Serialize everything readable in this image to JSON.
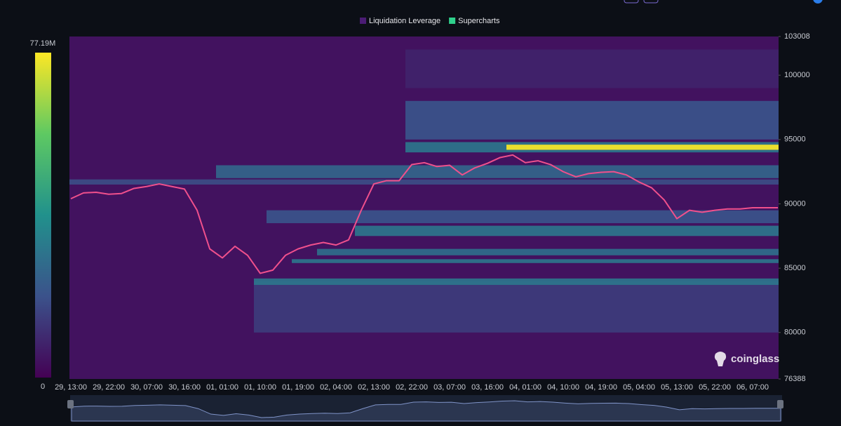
{
  "chart_data": {
    "type": "heatmap",
    "watermark": "coinglass",
    "categories": [
      "29, 13:00",
      null,
      null,
      "29, 22:00",
      null,
      null,
      "30, 07:00",
      null,
      null,
      "30, 16:00",
      null,
      null,
      "01, 01:00",
      null,
      null,
      "01, 10:00",
      null,
      null,
      "01, 19:00",
      null,
      null,
      "02, 04:00",
      null,
      null,
      "02, 13:00",
      null,
      null,
      "02, 22:00",
      null,
      null,
      "03, 07:00",
      null,
      null,
      "03, 16:00",
      null,
      null,
      "04, 01:00",
      null,
      null,
      "04, 10:00",
      null,
      null,
      "04, 19:00",
      null,
      null,
      "05, 04:00",
      null,
      null,
      "05, 13:00",
      null,
      null,
      "05, 22:00",
      null,
      null,
      "06, 07:00",
      null,
      null
    ],
    "ylim": [
      76388,
      103008
    ],
    "yticks": [
      76388,
      80000,
      85000,
      90000,
      95000,
      100000,
      103008
    ],
    "clim": [
      0,
      {
        "value": 77.19,
        "label": "77.19M"
      }
    ],
    "colormap": [
      "#440154",
      "#3b528b",
      "#21918c",
      "#5ec962",
      "#fde725"
    ],
    "series": [
      {
        "name": "Liquidation Leverage",
        "color": "#4b1c74",
        "base": 4,
        "bands": [
          {
            "low": 99000,
            "high": 102000,
            "start": 27,
            "value": 8
          },
          {
            "low": 80000,
            "high": 84000,
            "start": 15,
            "value": 14
          },
          {
            "low": 95000,
            "high": 98000,
            "start": 27,
            "value": 20
          },
          {
            "low": 94000,
            "high": 94800,
            "start": 27,
            "value": 30
          },
          {
            "low": 94200,
            "high": 94600,
            "start": 35,
            "value": 77
          },
          {
            "low": 92000,
            "high": 93000,
            "start": 12,
            "value": 25
          },
          {
            "low": 91500,
            "high": 91900,
            "start": 0,
            "value": 18
          },
          {
            "low": 88500,
            "high": 89500,
            "start": 16,
            "value": 20
          },
          {
            "low": 87500,
            "high": 88300,
            "start": 23,
            "value": 30
          },
          {
            "low": 86000,
            "high": 86500,
            "start": 20,
            "value": 28
          },
          {
            "low": 85400,
            "high": 85700,
            "start": 18,
            "value": 30
          },
          {
            "low": 83700,
            "high": 84200,
            "start": 15,
            "value": 30
          }
        ]
      },
      {
        "name": "Supercharts",
        "color": "#2fd18c",
        "line_color": "#f0508c",
        "values": [
          90400,
          90850,
          90900,
          90750,
          90800,
          91200,
          91350,
          91550,
          91350,
          91150,
          89500,
          86500,
          85800,
          86700,
          86000,
          84600,
          84850,
          86000,
          86500,
          86800,
          87000,
          86800,
          87200,
          89500,
          91550,
          91800,
          91800,
          93050,
          93200,
          92900,
          93000,
          92250,
          92800,
          93150,
          93600,
          93800,
          93200,
          93350,
          93050,
          92500,
          92100,
          92350,
          92450,
          92500,
          92250,
          91700,
          91250,
          90300,
          88850,
          89500,
          89350,
          89500,
          89600,
          89600,
          89700,
          89700,
          89700
        ]
      }
    ]
  }
}
